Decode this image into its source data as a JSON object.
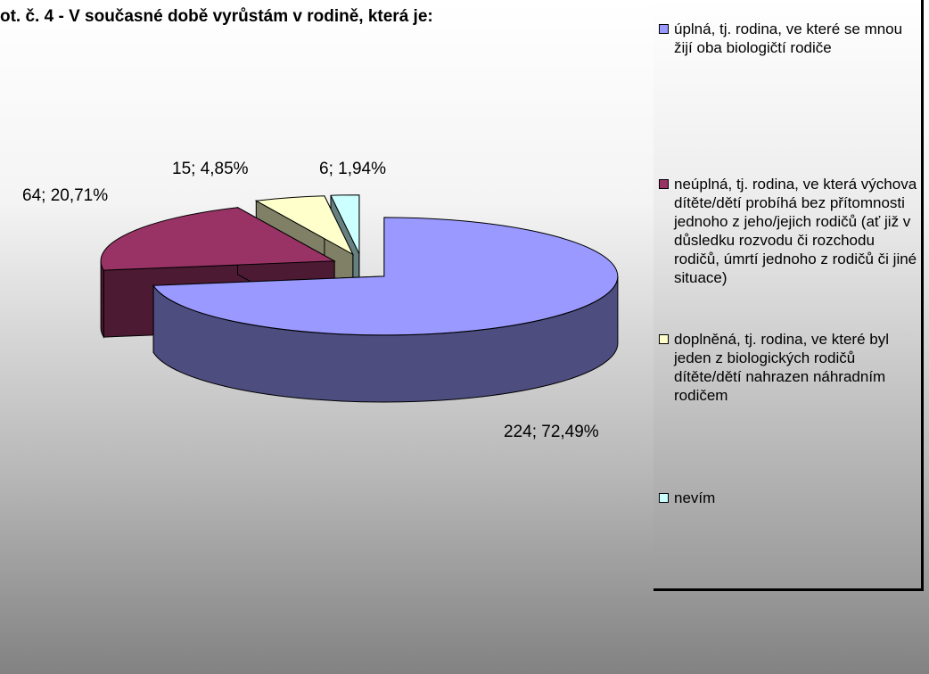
{
  "chart_data": {
    "type": "pie",
    "title": "ot. č. 4 - V současné době vyrůstám v rodině, která je:",
    "legend": "right",
    "series": [
      {
        "name": "úplná, tj. rodina, ve které se mnou žijí oba biologičtí rodiče",
        "color": "#9999ff",
        "values": [
          224
        ],
        "value_labels": [
          "224; 72,49%"
        ]
      },
      {
        "name": "neúplná, tj. rodina, ve která výchova dítěte/dětí probíhá bez přítomnosti jednoho z jeho/jejich rodičů (ať již v důsledku rozvodu či rozchodu rodičů, úmrtí jednoho z rodičů či jiné  situace)",
        "color": "#993366",
        "values": [
          64
        ],
        "value_labels": [
          "64; 20,71%"
        ]
      },
      {
        "name": "doplněná, tj. rodina, ve které byl jeden z biologických rodičů dítěte/dětí nahrazen náhradním rodičem",
        "color": "#ffffcc",
        "values": [
          15
        ],
        "value_labels": [
          "15; 4,85%"
        ]
      },
      {
        "name": "nevím",
        "color": "#ccffff",
        "values": [
          6
        ],
        "value_labels": [
          "6; 1,94%"
        ]
      }
    ]
  }
}
